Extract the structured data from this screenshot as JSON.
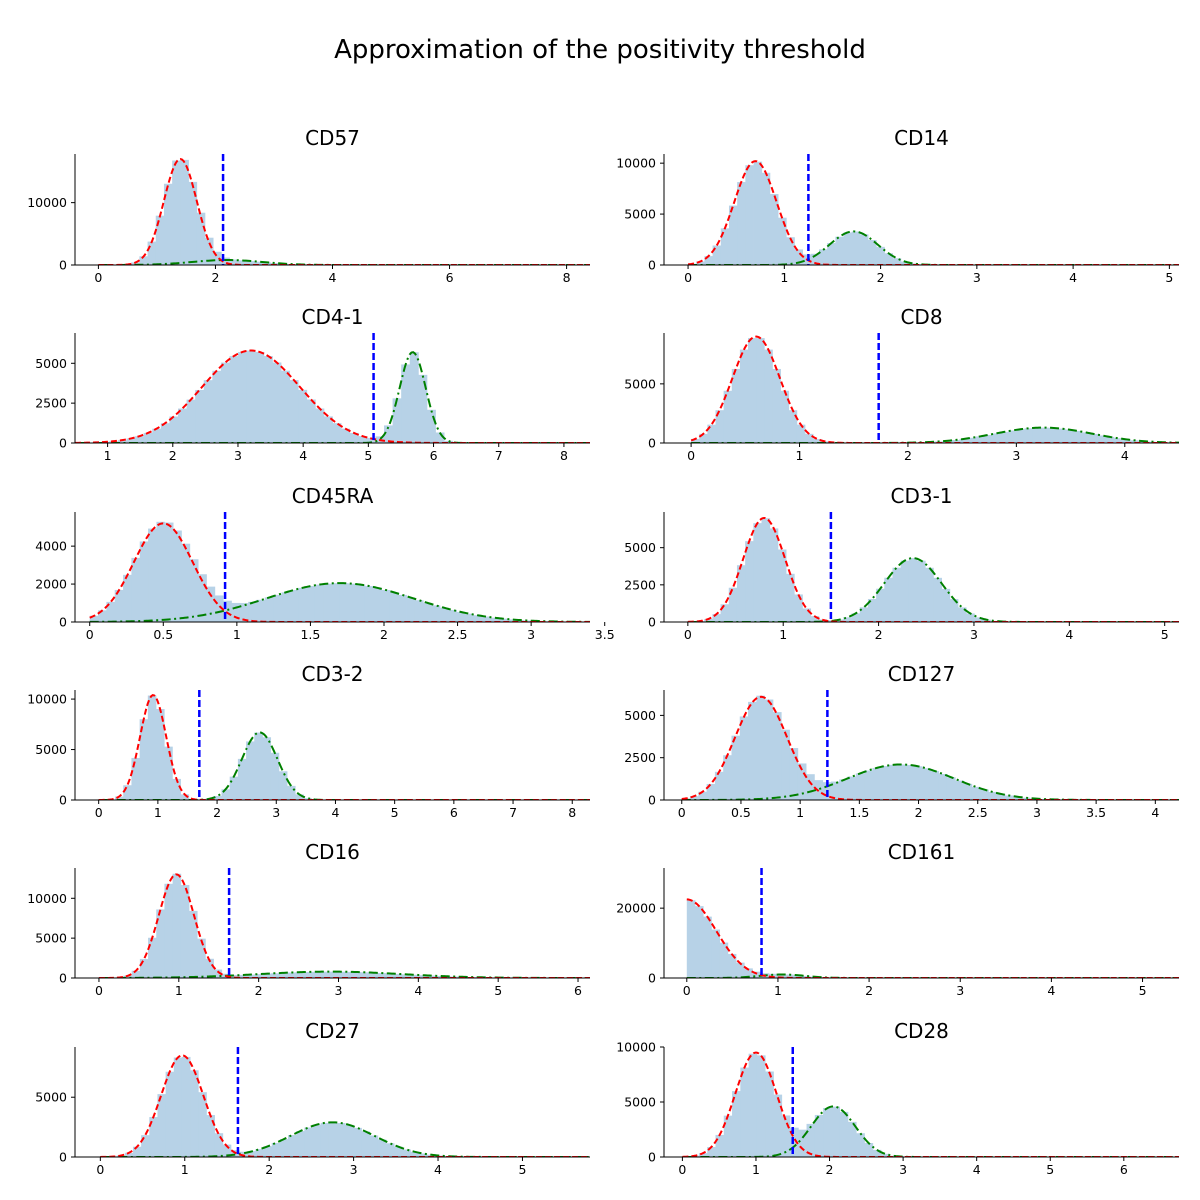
{
  "figure": {
    "title": "Approximation of the positivity threshold"
  },
  "colors": {
    "histogram": "#b7d2e7",
    "negative_fit": "#ff0000",
    "positive_fit": "#008000",
    "threshold": "#0000ff"
  },
  "chart_data": [
    {
      "type": "histogram",
      "title": "CD57",
      "xlim": [
        -0.4,
        8.4
      ],
      "ylim": [
        0,
        17800
      ],
      "xticks": [
        0,
        2,
        4,
        6,
        8
      ],
      "yticks": [
        0,
        10000
      ],
      "threshold": 2.13,
      "negative_fit": {
        "amplitude": 17000,
        "mean": 1.4,
        "sd": 0.28
      },
      "positive_fit": {
        "amplitude": 800,
        "mean": 2.2,
        "sd": 0.6
      }
    },
    {
      "type": "histogram",
      "title": "CD14",
      "xlim": [
        -0.25,
        5.1
      ],
      "ylim": [
        0,
        10900
      ],
      "xticks": [
        0,
        1,
        2,
        3,
        4,
        5
      ],
      "yticks": [
        0,
        5000,
        10000
      ],
      "threshold": 1.25,
      "negative_fit": {
        "amplitude": 10200,
        "mean": 0.7,
        "sd": 0.22
      },
      "positive_fit": {
        "amplitude": 3300,
        "mean": 1.72,
        "sd": 0.25
      }
    },
    {
      "type": "histogram",
      "title": "CD4-1",
      "xlim": [
        0.5,
        8.4
      ],
      "ylim": [
        0,
        6900
      ],
      "xticks": [
        1,
        2,
        3,
        4,
        5,
        6,
        7,
        8
      ],
      "yticks": [
        0,
        2500,
        5000
      ],
      "threshold": 5.08,
      "negative_fit": {
        "amplitude": 5800,
        "mean": 3.2,
        "sd": 0.75
      },
      "positive_fit": {
        "amplitude": 5700,
        "mean": 5.68,
        "sd": 0.2
      }
    },
    {
      "type": "histogram",
      "title": "CD8",
      "xlim": [
        -0.25,
        4.5
      ],
      "ylim": [
        0,
        9300
      ],
      "xticks": [
        0,
        1,
        2,
        3,
        4
      ],
      "yticks": [
        0,
        5000
      ],
      "threshold": 1.73,
      "negative_fit": {
        "amplitude": 9000,
        "mean": 0.6,
        "sd": 0.22
      },
      "positive_fit": {
        "amplitude": 1300,
        "mean": 3.25,
        "sd": 0.45
      }
    },
    {
      "type": "histogram",
      "title": "CD45RA",
      "xlim": [
        -0.1,
        3.4
      ],
      "ylim": [
        0,
        5800
      ],
      "xticks": [
        0,
        0.5,
        1,
        1.5,
        2,
        2.5,
        3,
        3.5
      ],
      "yticks": [
        0,
        2000,
        4000
      ],
      "threshold": 0.92,
      "negative_fit": {
        "amplitude": 5200,
        "mean": 0.5,
        "sd": 0.2
      },
      "positive_fit": {
        "amplitude": 2050,
        "mean": 1.7,
        "sd": 0.5
      }
    },
    {
      "type": "histogram",
      "title": "CD3-1",
      "xlim": [
        -0.25,
        5.15
      ],
      "ylim": [
        0,
        7400
      ],
      "xticks": [
        0,
        1,
        2,
        3,
        4,
        5
      ],
      "yticks": [
        0,
        2500,
        5000
      ],
      "threshold": 1.5,
      "negative_fit": {
        "amplitude": 7000,
        "mean": 0.8,
        "sd": 0.22
      },
      "positive_fit": {
        "amplitude": 4300,
        "mean": 2.36,
        "sd": 0.3
      }
    },
    {
      "type": "histogram",
      "title": "CD3-2",
      "xlim": [
        -0.4,
        8.3
      ],
      "ylim": [
        0,
        10900
      ],
      "xticks": [
        0,
        1,
        2,
        3,
        4,
        5,
        6,
        7,
        8
      ],
      "yticks": [
        0,
        5000,
        10000
      ],
      "threshold": 1.7,
      "negative_fit": {
        "amplitude": 10400,
        "mean": 0.92,
        "sd": 0.22
      },
      "positive_fit": {
        "amplitude": 6700,
        "mean": 2.72,
        "sd": 0.3
      }
    },
    {
      "type": "histogram",
      "title": "CD127",
      "xlim": [
        -0.15,
        4.2
      ],
      "ylim": [
        0,
        6500
      ],
      "xticks": [
        0,
        0.5,
        1,
        1.5,
        2,
        2.5,
        3,
        3.5,
        4
      ],
      "yticks": [
        0,
        2500,
        5000
      ],
      "threshold": 1.23,
      "negative_fit": {
        "amplitude": 6100,
        "mean": 0.67,
        "sd": 0.22
      },
      "positive_fit": {
        "amplitude": 2100,
        "mean": 1.85,
        "sd": 0.45
      }
    },
    {
      "type": "histogram",
      "title": "CD16",
      "xlim": [
        -0.3,
        6.15
      ],
      "ylim": [
        0,
        13800
      ],
      "xticks": [
        0,
        1,
        2,
        3,
        4,
        5,
        6
      ],
      "yticks": [
        0,
        5000,
        10000
      ],
      "threshold": 1.63,
      "negative_fit": {
        "amplitude": 13000,
        "mean": 0.97,
        "sd": 0.22
      },
      "positive_fit": {
        "amplitude": 800,
        "mean": 2.9,
        "sd": 0.9
      }
    },
    {
      "type": "histogram",
      "title": "CD161",
      "xlim": [
        -0.25,
        5.4
      ],
      "ylim": [
        0,
        31500
      ],
      "xticks": [
        0,
        1,
        2,
        3,
        4,
        5
      ],
      "yticks": [
        0,
        20000
      ],
      "threshold": 0.82,
      "negative_fit": {
        "amplitude": 22500,
        "mean": 0,
        "sd": 0.32
      },
      "positive_fit": {
        "amplitude": 1000,
        "mean": 1.05,
        "sd": 0.25
      }
    },
    {
      "type": "histogram",
      "title": "CD27",
      "xlim": [
        -0.3,
        5.8
      ],
      "ylim": [
        0,
        9200
      ],
      "xticks": [
        0,
        1,
        2,
        3,
        4,
        5
      ],
      "yticks": [
        0,
        5000
      ],
      "threshold": 1.63,
      "negative_fit": {
        "amplitude": 8500,
        "mean": 0.97,
        "sd": 0.25
      },
      "positive_fit": {
        "amplitude": 2900,
        "mean": 2.75,
        "sd": 0.5
      }
    },
    {
      "type": "histogram",
      "title": "CD28",
      "xlim": [
        -0.25,
        6.75
      ],
      "ylim": [
        0,
        10000
      ],
      "xticks": [
        0,
        1,
        2,
        3,
        4,
        5,
        6
      ],
      "yticks": [
        0,
        5000,
        10000
      ],
      "threshold": 1.5,
      "negative_fit": {
        "amplitude": 9500,
        "mean": 1,
        "sd": 0.28
      },
      "positive_fit": {
        "amplitude": 4600,
        "mean": 2.05,
        "sd": 0.3
      }
    }
  ]
}
